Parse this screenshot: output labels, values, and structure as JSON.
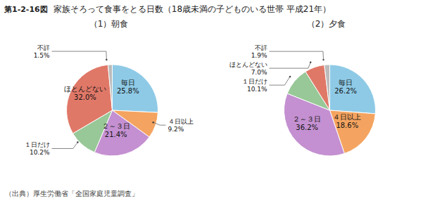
{
  "title": "家族そろって食事をとる日数（18歳未満の子どものいる世帯 平成21年）",
  "annotations": [
    "第1-2-16図",
    "（出典）厚生労働省「全国家庭児童調査」"
  ],
  "chart_data": [
    {
      "type": "pie",
      "title": "（1）朝食",
      "categories": [
        "毎日",
        "４日以上",
        "２～３日",
        "１日だけ",
        "ほとんどない",
        "不詳"
      ],
      "values": [
        25.8,
        9.2,
        21.4,
        10.2,
        32.0,
        1.5
      ],
      "value_labels": [
        "25.8%",
        "9.2%",
        "21.4%",
        "10.2%",
        "32.0%",
        "1.5%"
      ],
      "colors": [
        "#8ecae6",
        "#f4a460",
        "#c490d1",
        "#98c897",
        "#e07868",
        "#bbbbbb"
      ],
      "data_labels": true
    },
    {
      "type": "pie",
      "title": "（2）夕食",
      "categories": [
        "毎日",
        "４日以上",
        "２～３日",
        "１日だけ",
        "ほとんどない",
        "不詳"
      ],
      "values": [
        26.2,
        18.6,
        36.2,
        10.1,
        7.0,
        1.9
      ],
      "value_labels": [
        "26.2%",
        "18.6%",
        "36.2%",
        "10.1%",
        "7.0%",
        "1.9%"
      ],
      "colors": [
        "#8ecae6",
        "#f4a460",
        "#c490d1",
        "#98c897",
        "#e07868",
        "#bbbbbb"
      ],
      "data_labels": true
    }
  ]
}
